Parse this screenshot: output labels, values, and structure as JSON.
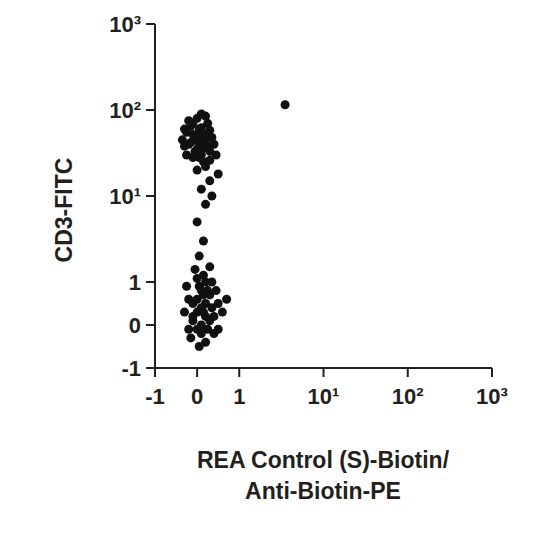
{
  "chart_data": {
    "type": "scatter",
    "x_label": [
      "REA Control (S)-Biotin/",
      "Anti-Biotin-PE"
    ],
    "y_label": "CD3-FITC",
    "log": true,
    "color": "#111111",
    "marker": "circle",
    "xlim": [
      -1,
      1000
    ],
    "ylim": [
      -1,
      1000
    ],
    "xticks": [
      -1,
      0,
      1,
      {
        "value": 10,
        "label": "10¹"
      },
      {
        "value": 100,
        "label": "10²"
      },
      {
        "value": 1000,
        "label": "10³"
      }
    ],
    "yticks": [
      -1,
      0,
      1,
      {
        "value": 10,
        "label": "10¹"
      },
      {
        "value": 100,
        "label": "10²"
      },
      {
        "value": 1000,
        "label": "10³"
      }
    ],
    "x": [
      -0.2,
      0,
      0.1,
      -0.1,
      0.2,
      0.05,
      -0.25,
      0.3,
      0.15,
      -0.05,
      0.25,
      -0.3,
      0,
      0.1,
      -0.15,
      0.35,
      0.2,
      -0.1,
      0.05,
      0.4,
      -0.2,
      0.1,
      -0.35,
      0.3,
      0,
      0.15,
      -0.05,
      0.25,
      -0.15,
      0.1,
      0.45,
      -0.25,
      0.2,
      0,
      -0.1,
      0.3,
      0.05,
      -0.3,
      0.2,
      0.15,
      0.1,
      0.2,
      0,
      0.3,
      0.15,
      0.05,
      0.35,
      0.5,
      0,
      0.2,
      -0.1,
      0.3,
      0.1,
      -0.2,
      0.4,
      0.05,
      0.25,
      -0.15,
      0.15,
      0.5,
      0,
      0.35,
      -0.3,
      0.1,
      0.2,
      0.45,
      -0.05,
      0.3,
      0.6,
      0.1,
      -0.25,
      0.2,
      0.05,
      0.4,
      0,
      0.25,
      -0.1,
      0.15,
      0.7,
      0.3,
      -0.2,
      0.1,
      0.35,
      0,
      0.2,
      0.5,
      -0.1,
      0.15,
      3.5
    ],
    "values": [
      40,
      35,
      50,
      28,
      42,
      60,
      55,
      33,
      25,
      45,
      70,
      38,
      80,
      30,
      65,
      48,
      22,
      52,
      38,
      40,
      75,
      90,
      45,
      58,
      20,
      44,
      33,
      36,
      42,
      62,
      30,
      30,
      85,
      48,
      70,
      26,
      28,
      60,
      52,
      36,
      12,
      8,
      5,
      15,
      3,
      2,
      10,
      18,
      0.3,
      0.5,
      0.1,
      0.7,
      -0.2,
      0.6,
      0.2,
      0.9,
      -0.1,
      -0.3,
      1.2,
      0.5,
      0.6,
      1,
      0.3,
      0.4,
      -0.4,
      0.8,
      1.4,
      0.1,
      0.3,
      0,
      0.9,
      0.2,
      -0.5,
      -0.2,
      1.1,
      0.8,
      0.5,
      0.7,
      0.6,
      1.5,
      -0.1,
      0.8,
      0.4,
      -0.1,
      1,
      -0.1,
      0.2,
      0.3,
      115
    ]
  }
}
